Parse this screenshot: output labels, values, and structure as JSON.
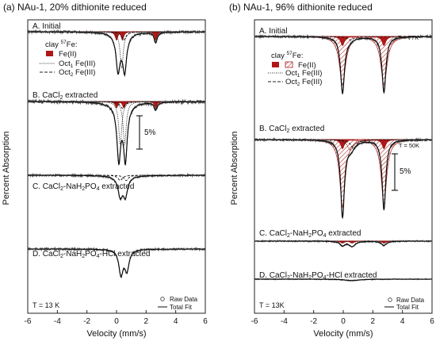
{
  "chart_data": [
    {
      "type": "line",
      "title": "(a) NAu-1, 20% dithionite reduced",
      "xlabel": "Velocity (mm/s)",
      "ylabel": "Percent Absorption",
      "xlim": [
        -6,
        6
      ],
      "xticks": [
        "-6",
        "-4",
        "-2",
        "0",
        "2",
        "4",
        "6"
      ],
      "temperature_note": "T = 13 K",
      "scale_bar_label": "5%",
      "legend": {
        "header": "clay 57Fe:",
        "items": [
          {
            "label": "Fe(II)",
            "style": "filled",
            "color": "#b01818"
          },
          {
            "label": "Oct1 Fe(III)",
            "style": "dotted"
          },
          {
            "label": "Oct2 Fe(III)",
            "style": "dashed"
          }
        ],
        "raw_label": "Raw Data",
        "fit_label": "Total Fit"
      },
      "panels": [
        {
          "label": "A. Initial",
          "temperature": "",
          "depth_percent": 6.5,
          "baseline_noise": 0.15,
          "fe2_subcomponents": [
            {
              "center": 0.0,
              "width": 0.22,
              "depth_percent": 1.3
            },
            {
              "center": 0.4,
              "width": 0.22,
              "depth_percent": 1.3
            },
            {
              "center": 2.65,
              "width": 0.22,
              "depth_percent": 1.3
            }
          ],
          "fe3_subcomponents": [
            {
              "center": 0.35,
              "width": 0.25,
              "depth_percent": 5.5,
              "style": "dotted"
            },
            {
              "center": 0.5,
              "width": 0.35,
              "depth_percent": 1.2,
              "style": "dashed"
            }
          ]
        },
        {
          "label": "B. CaCl2 extracted",
          "temperature": "",
          "depth_percent": 9.5,
          "baseline_noise": 0.2,
          "fe2_subcomponents": [
            {
              "center": 0.0,
              "width": 0.22,
              "depth_percent": 1.0
            },
            {
              "center": 0.5,
              "width": 0.22,
              "depth_percent": 1.0
            },
            {
              "center": 2.65,
              "width": 0.22,
              "depth_percent": 1.0
            }
          ],
          "fe3_subcomponents": [
            {
              "center": 0.25,
              "width": 0.25,
              "depth_percent": 6.5,
              "style": "dotted"
            },
            {
              "center": 0.55,
              "width": 0.25,
              "depth_percent": 6.5,
              "style": "dotted"
            },
            {
              "center": 0.4,
              "width": 0.4,
              "depth_percent": 1.0,
              "style": "dashed"
            }
          ]
        },
        {
          "label": "C. CaCl2-NaH2PO4 extracted",
          "temperature": "",
          "depth_percent": 3.6,
          "baseline_noise": 0.12,
          "fe2_subcomponents": [],
          "fe3_subcomponents": [
            {
              "center": 0.25,
              "width": 0.35,
              "depth_percent": 0.8,
              "style": "dashed"
            },
            {
              "center": 0.65,
              "width": 0.35,
              "depth_percent": 0.8,
              "style": "dashed"
            }
          ]
        },
        {
          "label": "D. CaCl2-NaH2PO4-HCl extracted",
          "temperature": "",
          "depth_percent": 4.2,
          "baseline_noise": 0.12,
          "fe2_subcomponents": [],
          "fe3_subcomponents": []
        }
      ]
    },
    {
      "type": "line",
      "title": "(b) NAu-1, 96% dithionite reduced",
      "xlabel": "Velocity (mm/s)",
      "ylabel": "Percent Absorption",
      "xlim": [
        -6,
        6
      ],
      "xticks": [
        "-6",
        "-4",
        "-2",
        "0",
        "2",
        "4",
        "6"
      ],
      "temperature_note": "T = 13K",
      "scale_bar_label": "5%",
      "legend": {
        "header": "clay 57Fe:",
        "items": [
          {
            "label": "Fe(II)",
            "style": "filled",
            "color": "#b01818"
          },
          {
            "label": "Fe(II)",
            "style": "hatched",
            "color": "#b01818"
          },
          {
            "label": "Oct1 Fe(III)",
            "style": "dotted"
          },
          {
            "label": "Oct2 Fe(III)",
            "style": "dashed"
          }
        ],
        "raw_label": "Raw Data",
        "fit_label": "Total Fit"
      },
      "panels": [
        {
          "label": "A. Initial",
          "temperature": "T = 77K",
          "depth_percent": 8.0,
          "baseline_noise": 0.12,
          "fe2_subcomponents": [
            {
              "center": -0.05,
              "width": 0.3,
              "depth_percent": 1.3
            },
            {
              "center": 2.75,
              "width": 0.3,
              "depth_percent": 1.3
            }
          ],
          "fe2_hatched": [
            {
              "center": -0.05,
              "width": 0.5,
              "depth_percent": 6.8
            },
            {
              "center": 2.75,
              "width": 0.5,
              "depth_percent": 6.8
            }
          ],
          "fe3_subcomponents": [
            {
              "center": 0.5,
              "width": 0.5,
              "depth_percent": 0.5,
              "style": "dashed"
            }
          ]
        },
        {
          "label": "B. CaCl2 extracted",
          "temperature": "T = 50K",
          "depth_percent": 11.0,
          "baseline_noise": 0.12,
          "fe2_subcomponents": [
            {
              "center": -0.05,
              "width": 0.3,
              "depth_percent": 1.3
            },
            {
              "center": 2.75,
              "width": 0.3,
              "depth_percent": 1.3
            }
          ],
          "fe2_hatched": [
            {
              "center": -0.05,
              "width": 0.45,
              "depth_percent": 9.5
            },
            {
              "center": 2.75,
              "width": 0.45,
              "depth_percent": 9.0
            }
          ],
          "fe3_subcomponents": [
            {
              "center": 0.5,
              "width": 0.5,
              "depth_percent": 1.5,
              "style": "dotted"
            },
            {
              "center": 0.7,
              "width": 0.5,
              "depth_percent": 1.2,
              "style": "dashed"
            }
          ]
        },
        {
          "label": "C. CaCl2-NaH2PO4 extracted",
          "temperature": "",
          "depth_percent": 0.8,
          "baseline_noise": 0.08,
          "fe2_subcomponents": [
            {
              "center": -0.05,
              "width": 0.35,
              "depth_percent": 0.3
            },
            {
              "center": 0.6,
              "width": 0.35,
              "depth_percent": 0.3
            },
            {
              "center": 2.75,
              "width": 0.35,
              "depth_percent": 0.3
            }
          ],
          "fe3_subcomponents": []
        },
        {
          "label": "D. CaCl2-NaH2PO4-HCl extracted",
          "temperature": "",
          "depth_percent": 0.2,
          "baseline_noise": 0.05,
          "fe2_subcomponents": [],
          "fe3_subcomponents": []
        }
      ]
    }
  ]
}
